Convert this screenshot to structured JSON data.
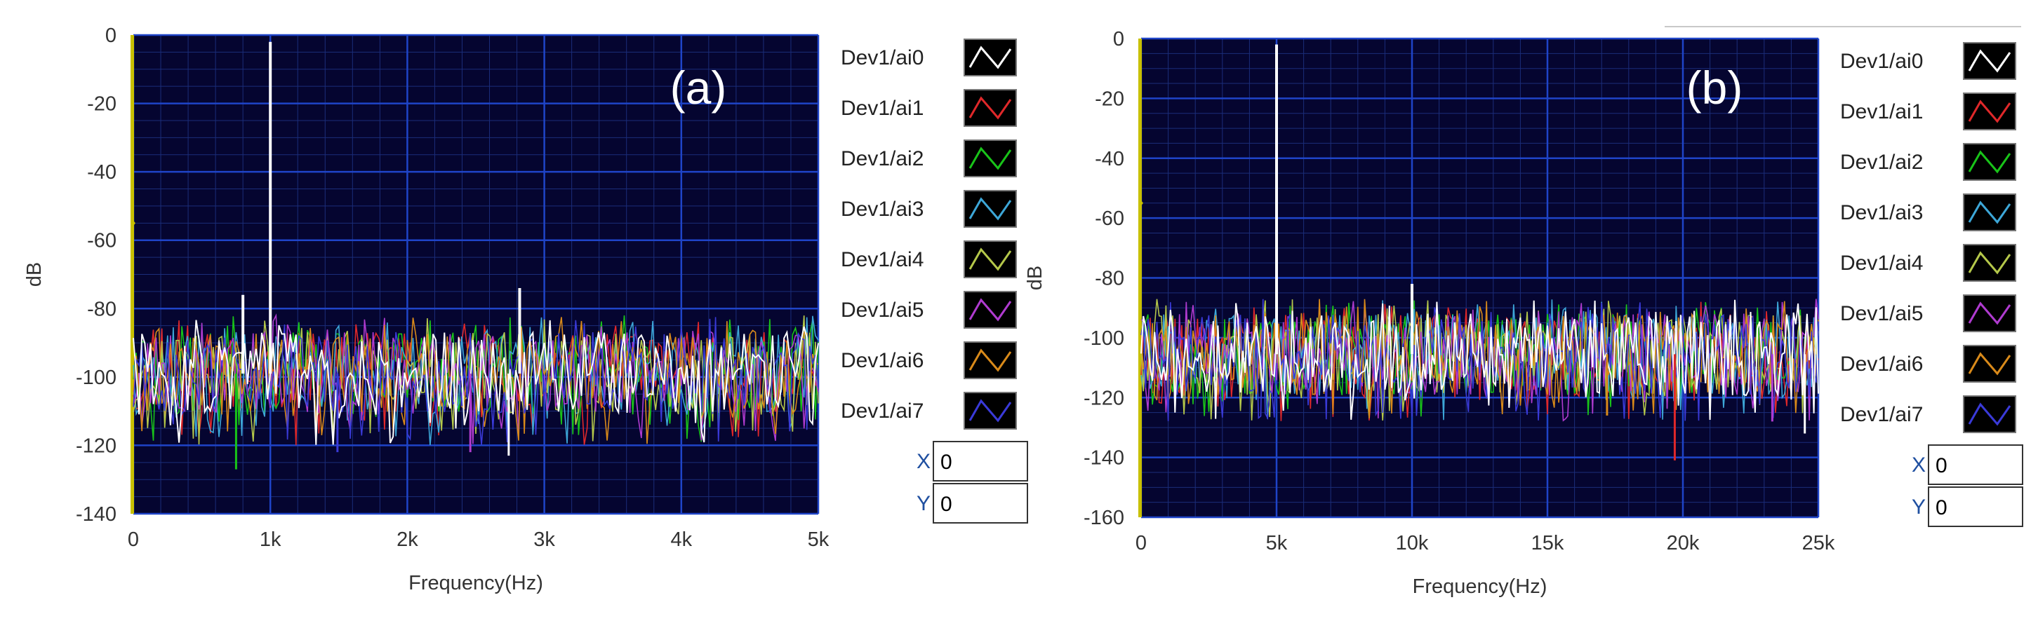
{
  "chart_data": [
    {
      "type": "line",
      "panel": "(a)",
      "xlabel": "Frequency(Hz)",
      "ylabel": "dB",
      "xlim": [
        0,
        5000
      ],
      "ylim": [
        -140,
        0
      ],
      "x_ticks": [
        0,
        1000,
        2000,
        3000,
        4000,
        5000
      ],
      "x_tick_labels": [
        "0",
        "1k",
        "2k",
        "3k",
        "4k",
        "5k"
      ],
      "y_ticks": [
        0,
        -20,
        -40,
        -60,
        -80,
        -100,
        -120,
        -140
      ],
      "y_tick_labels": [
        "0",
        "-20",
        "-40",
        "-60",
        "-80",
        "-100",
        "-120",
        "-140"
      ],
      "grid": true,
      "noise_floor_db": [
        -110,
        -88
      ],
      "peaks": [
        {
          "x": 1000,
          "y": -2,
          "series": "Dev1/ai0"
        },
        {
          "x": 800,
          "y": -76,
          "series": "Dev1/ai0"
        },
        {
          "x": 2820,
          "y": -74,
          "series": "Dev1/ai0"
        }
      ],
      "dips": [
        {
          "x": 750,
          "y": -127,
          "series": "Dev1/ai2"
        },
        {
          "x": 2460,
          "y": -122,
          "series": "Dev1/ai5"
        },
        {
          "x": 2740,
          "y": -123,
          "series": "Dev1/ai0"
        },
        {
          "x": 1490,
          "y": -122,
          "series": "Dev1/ai7"
        }
      ],
      "series": [
        {
          "name": "Dev1/ai0",
          "color": "#ffffff"
        },
        {
          "name": "Dev1/ai1",
          "color": "#e0282a"
        },
        {
          "name": "Dev1/ai2",
          "color": "#19c419"
        },
        {
          "name": "Dev1/ai3",
          "color": "#3da7d8"
        },
        {
          "name": "Dev1/ai4",
          "color": "#b5c84a"
        },
        {
          "name": "Dev1/ai5",
          "color": "#b03bd0"
        },
        {
          "name": "Dev1/ai6",
          "color": "#d98a1a"
        },
        {
          "name": "Dev1/ai7",
          "color": "#3a3ad8"
        }
      ],
      "cursor": {
        "x_label": "X",
        "x_value": "0",
        "y_label": "Y",
        "y_value": "0"
      },
      "legend_position": "right"
    },
    {
      "type": "line",
      "panel": "(b)",
      "xlabel": "Frequency(Hz)",
      "ylabel": "dB",
      "xlim": [
        0,
        25000
      ],
      "ylim": [
        -160,
        0
      ],
      "x_ticks": [
        0,
        5000,
        10000,
        15000,
        20000,
        25000
      ],
      "x_tick_labels": [
        "0",
        "5k",
        "10k",
        "15k",
        "20k",
        "25k"
      ],
      "y_ticks": [
        0,
        -20,
        -40,
        -60,
        -80,
        -100,
        -120,
        -140,
        -160
      ],
      "y_tick_labels": [
        "0",
        "-20",
        "-40",
        "-60",
        "-80",
        "-100",
        "-120",
        "-140",
        "-160"
      ],
      "grid": true,
      "noise_floor_db": [
        -118,
        -93
      ],
      "peaks": [
        {
          "x": 5000,
          "y": -2,
          "series": "Dev1/ai0"
        },
        {
          "x": 10000,
          "y": -82,
          "series": "Dev1/ai0"
        }
      ],
      "dips": [
        {
          "x": 19700,
          "y": -141,
          "series": "Dev1/ai1"
        },
        {
          "x": 17200,
          "y": -126,
          "series": "Dev1/ai6"
        },
        {
          "x": 23300,
          "y": -128,
          "series": "Dev1/ai5"
        },
        {
          "x": 24500,
          "y": -132,
          "series": "Dev1/ai0"
        }
      ],
      "series": [
        {
          "name": "Dev1/ai0",
          "color": "#ffffff"
        },
        {
          "name": "Dev1/ai1",
          "color": "#e0282a"
        },
        {
          "name": "Dev1/ai2",
          "color": "#19c419"
        },
        {
          "name": "Dev1/ai3",
          "color": "#3da7d8"
        },
        {
          "name": "Dev1/ai4",
          "color": "#b5c84a"
        },
        {
          "name": "Dev1/ai5",
          "color": "#b03bd0"
        },
        {
          "name": "Dev1/ai6",
          "color": "#d98a1a"
        },
        {
          "name": "Dev1/ai7",
          "color": "#3a3ad8"
        }
      ],
      "cursor": {
        "x_label": "X",
        "x_value": "0",
        "y_label": "Y",
        "y_value": "0"
      },
      "legend_position": "right"
    }
  ],
  "colors": {
    "plot_background": "#050530",
    "major_grid": "#1f44c8",
    "minor_grid": "#1b2d7a",
    "left_axis_marker": "#c8c000"
  }
}
